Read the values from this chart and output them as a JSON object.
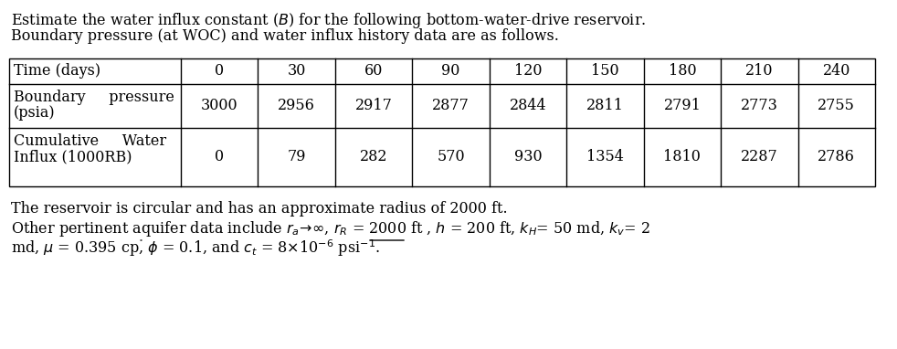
{
  "time_values": [
    "0",
    "30",
    "60",
    "90",
    "120",
    "150",
    "180",
    "210",
    "240"
  ],
  "pressure_values": [
    "3000",
    "2956",
    "2917",
    "2877",
    "2844",
    "2811",
    "2791",
    "2773",
    "2755"
  ],
  "influx_values": [
    "0",
    "79",
    "282",
    "570",
    "930",
    "1354",
    "1810",
    "2287",
    "2786"
  ],
  "background_color": "#ffffff",
  "text_color": "#000000",
  "font_size": 11.5,
  "table_font_size": 11.5
}
